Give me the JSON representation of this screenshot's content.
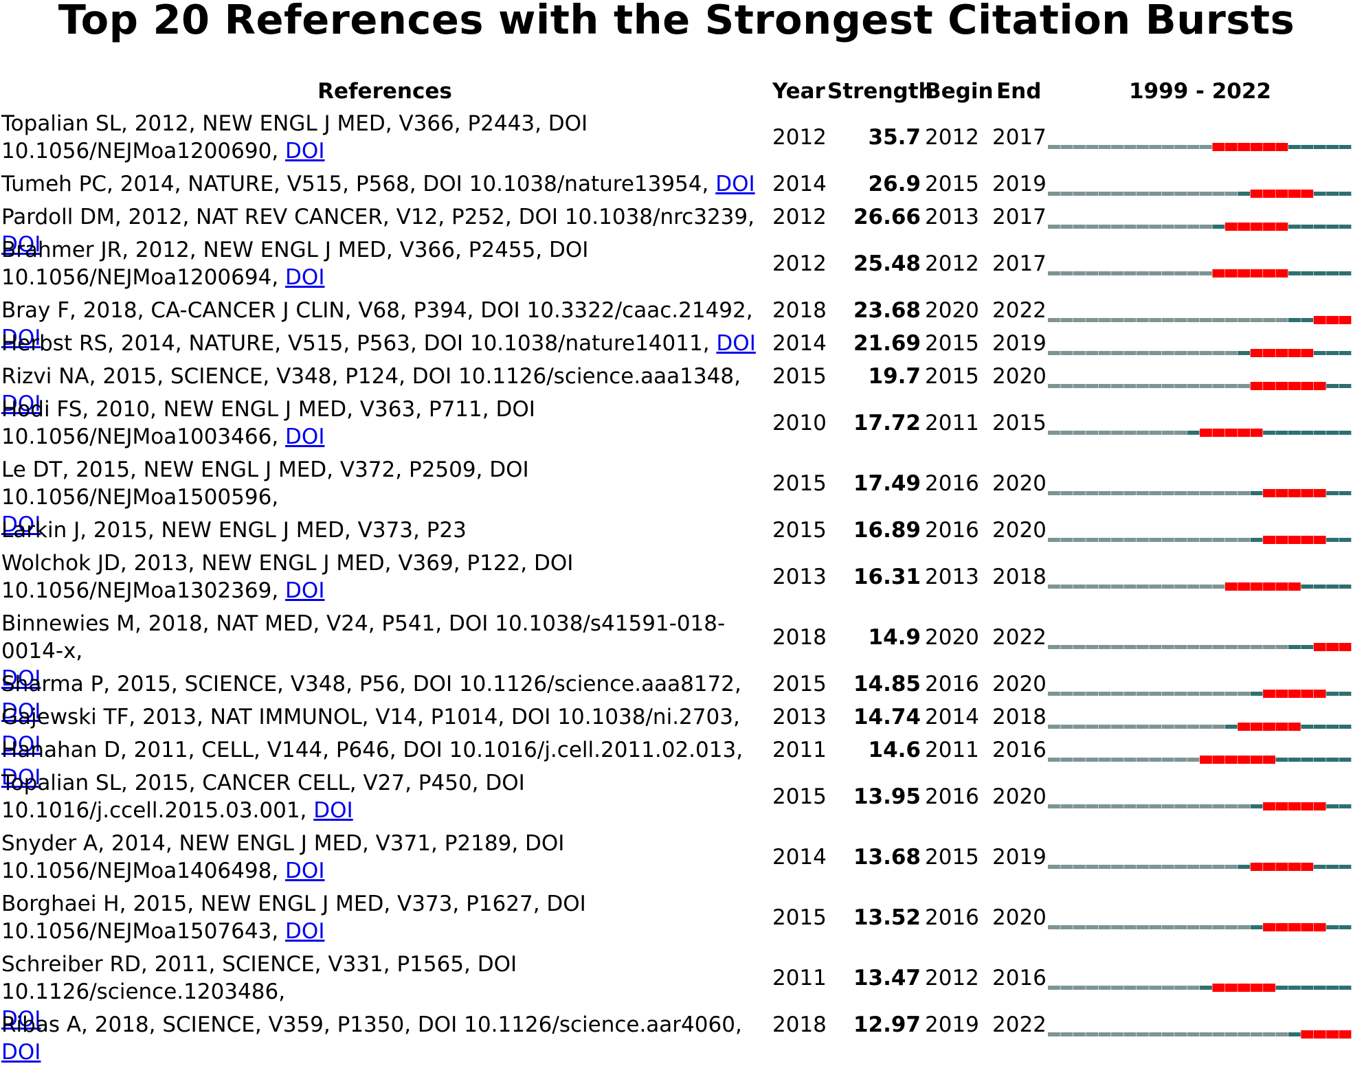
{
  "title": "Top 20 References with the Strongest Citation Bursts",
  "headers": {
    "references": "References",
    "year": "Year",
    "strength": "Strength",
    "begin": "Begin",
    "end": "End",
    "range": "1999 - 2022"
  },
  "doi_label": "DOI",
  "colors": {
    "burst": "#ff0000",
    "active": "#2e7070",
    "inactive": "#7f9494"
  },
  "chart_data": {
    "type": "table",
    "title": "Top 20 References with the Strongest Citation Bursts",
    "timeline_start": 1999,
    "timeline_end": 2022,
    "rows": [
      {
        "ref_lines": [
          "Topalian SL, 2012, NEW ENGL J MED, V366, P2443, DOI",
          "10.1056/NEJMoa1200690, "
        ],
        "doi": true,
        "year": 2012,
        "strength": "35.7",
        "begin": 2012,
        "end": 2017
      },
      {
        "ref_lines": [
          "Tumeh PC, 2014, NATURE, V515, P568, DOI 10.1038/nature13954, "
        ],
        "doi": true,
        "year": 2014,
        "strength": "26.9",
        "begin": 2015,
        "end": 2019
      },
      {
        "ref_lines": [
          "Pardoll DM, 2012, NAT REV CANCER, V12, P252, DOI 10.1038/nrc3239, "
        ],
        "doi": true,
        "year": 2012,
        "strength": "26.66",
        "begin": 2013,
        "end": 2017
      },
      {
        "ref_lines": [
          "Brahmer JR, 2012, NEW ENGL J MED, V366, P2455, DOI",
          "10.1056/NEJMoa1200694, "
        ],
        "doi": true,
        "year": 2012,
        "strength": "25.48",
        "begin": 2012,
        "end": 2017
      },
      {
        "ref_lines": [
          "Bray F, 2018, CA-CANCER J CLIN, V68, P394, DOI 10.3322/caac.21492, "
        ],
        "doi": true,
        "year": 2018,
        "strength": "23.68",
        "begin": 2020,
        "end": 2022
      },
      {
        "ref_lines": [
          "Herbst RS, 2014, NATURE, V515, P563, DOI 10.1038/nature14011, "
        ],
        "doi": true,
        "year": 2014,
        "strength": "21.69",
        "begin": 2015,
        "end": 2019
      },
      {
        "ref_lines": [
          "Rizvi NA, 2015, SCIENCE, V348, P124, DOI 10.1126/science.aaa1348, "
        ],
        "doi": true,
        "year": 2015,
        "strength": "19.7",
        "begin": 2015,
        "end": 2020
      },
      {
        "ref_lines": [
          "Hodi FS, 2010, NEW ENGL J MED, V363, P711, DOI",
          "10.1056/NEJMoa1003466, "
        ],
        "doi": true,
        "year": 2010,
        "strength": "17.72",
        "begin": 2011,
        "end": 2015
      },
      {
        "ref_lines": [
          "Le DT, 2015, NEW ENGL J MED, V372, P2509, DOI 10.1056/NEJMoa1500596,",
          ""
        ],
        "doi": true,
        "year": 2015,
        "strength": "17.49",
        "begin": 2016,
        "end": 2020
      },
      {
        "ref_lines": [
          "Larkin J, 2015, NEW ENGL J MED, V373, P23"
        ],
        "doi": false,
        "year": 2015,
        "strength": "16.89",
        "begin": 2016,
        "end": 2020
      },
      {
        "ref_lines": [
          "Wolchok JD, 2013, NEW ENGL J MED, V369, P122, DOI",
          "10.1056/NEJMoa1302369, "
        ],
        "doi": true,
        "year": 2013,
        "strength": "16.31",
        "begin": 2013,
        "end": 2018
      },
      {
        "ref_lines": [
          "Binnewies M, 2018, NAT MED, V24, P541, DOI 10.1038/s41591-018-0014-x,",
          ""
        ],
        "doi": true,
        "year": 2018,
        "strength": "14.9",
        "begin": 2020,
        "end": 2022
      },
      {
        "ref_lines": [
          "Sharma P, 2015, SCIENCE, V348, P56, DOI 10.1126/science.aaa8172, "
        ],
        "doi": true,
        "year": 2015,
        "strength": "14.85",
        "begin": 2016,
        "end": 2020
      },
      {
        "ref_lines": [
          "Gajewski TF, 2013, NAT IMMUNOL, V14, P1014, DOI 10.1038/ni.2703, "
        ],
        "doi": true,
        "year": 2013,
        "strength": "14.74",
        "begin": 2014,
        "end": 2018
      },
      {
        "ref_lines": [
          "Hanahan D, 2011, CELL, V144, P646, DOI 10.1016/j.cell.2011.02.013, "
        ],
        "doi": true,
        "year": 2011,
        "strength": "14.6",
        "begin": 2011,
        "end": 2016
      },
      {
        "ref_lines": [
          "Topalian SL, 2015, CANCER CELL, V27, P450, DOI",
          "10.1016/j.ccell.2015.03.001, "
        ],
        "doi": true,
        "year": 2015,
        "strength": "13.95",
        "begin": 2016,
        "end": 2020
      },
      {
        "ref_lines": [
          "Snyder A, 2014, NEW ENGL J MED, V371, P2189, DOI",
          "10.1056/NEJMoa1406498, "
        ],
        "doi": true,
        "year": 2014,
        "strength": "13.68",
        "begin": 2015,
        "end": 2019
      },
      {
        "ref_lines": [
          "Borghaei H, 2015, NEW ENGL J MED, V373, P1627, DOI",
          "10.1056/NEJMoa1507643, "
        ],
        "doi": true,
        "year": 2015,
        "strength": "13.52",
        "begin": 2016,
        "end": 2020
      },
      {
        "ref_lines": [
          "Schreiber RD, 2011, SCIENCE, V331, P1565, DOI 10.1126/science.1203486,",
          ""
        ],
        "doi": true,
        "year": 2011,
        "strength": "13.47",
        "begin": 2012,
        "end": 2016
      },
      {
        "ref_lines": [
          "Ribas A, 2018, SCIENCE, V359, P1350, DOI 10.1126/science.aar4060, "
        ],
        "doi": true,
        "year": 2018,
        "strength": "12.97",
        "begin": 2019,
        "end": 2022
      }
    ]
  }
}
